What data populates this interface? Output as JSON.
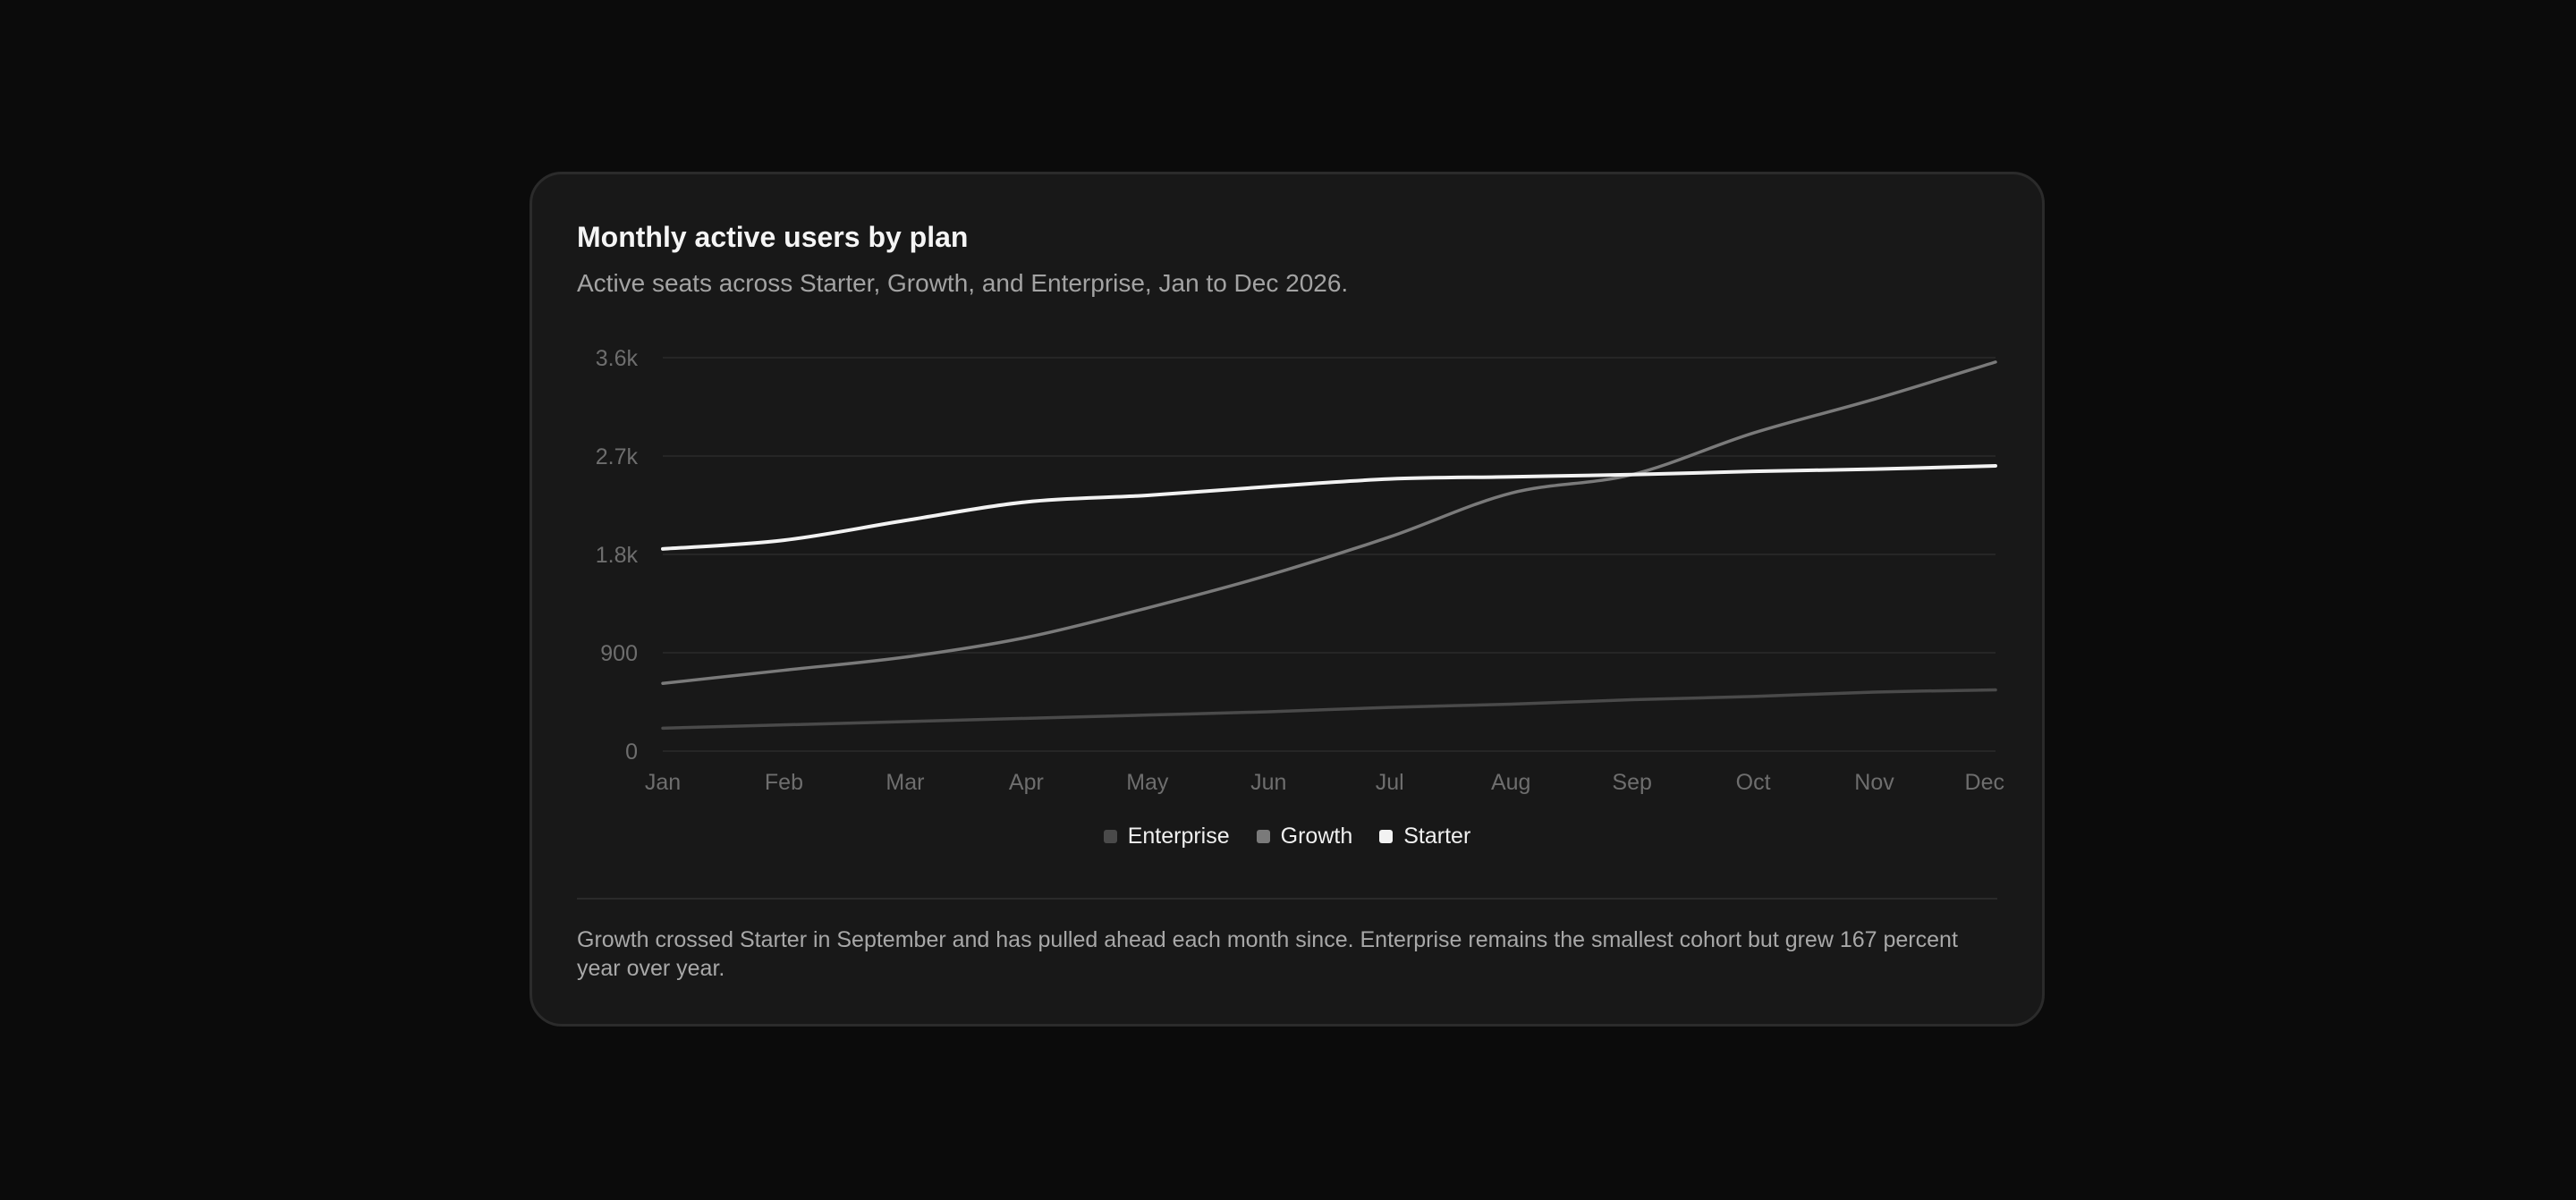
{
  "card": {
    "title": "Monthly active users by plan",
    "subtitle": "Active seats across Starter, Growth, and Enterprise, Jan to Dec 2026.",
    "note": "Growth crossed Starter in September and has pulled ahead each month since. Enterprise remains the smallest cohort but grew 167 percent year over year."
  },
  "chart_data": {
    "type": "line",
    "x": [
      "Jan",
      "Feb",
      "Mar",
      "Apr",
      "May",
      "Jun",
      "Jul",
      "Aug",
      "Sep",
      "Oct",
      "Nov",
      "Dec"
    ],
    "ylim": [
      0,
      3600
    ],
    "yticks": [
      0,
      900,
      1800,
      2700,
      3600
    ],
    "ytick_labels": [
      "0",
      "900",
      "1.8k",
      "2.7k",
      "3.6k"
    ],
    "grid": true,
    "legend_position": "bottom-center",
    "series": [
      {
        "name": "Enterprise",
        "color": "#4a4a4a",
        "values": [
          210,
          240,
          270,
          300,
          330,
          360,
          400,
          430,
          470,
          500,
          540,
          560
        ]
      },
      {
        "name": "Growth",
        "color": "#7a7a7a",
        "values": [
          620,
          740,
          860,
          1040,
          1310,
          1610,
          1960,
          2360,
          2530,
          2910,
          3220,
          3560
        ]
      },
      {
        "name": "Starter",
        "color": "#f2f2f2",
        "values": [
          1850,
          1930,
          2110,
          2280,
          2340,
          2420,
          2490,
          2510,
          2530,
          2560,
          2580,
          2610
        ]
      }
    ]
  }
}
